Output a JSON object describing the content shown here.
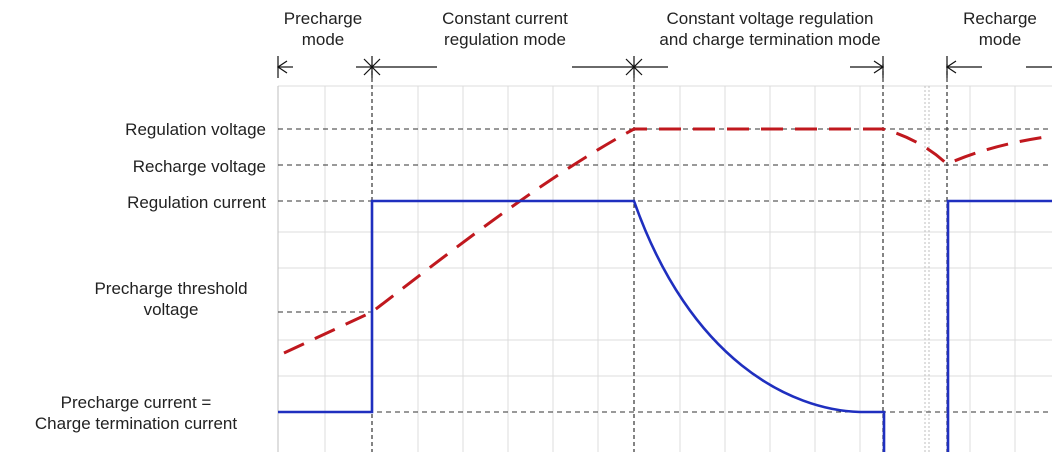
{
  "phases": [
    {
      "line1": "Precharge",
      "line2": "mode"
    },
    {
      "line1": "Constant current",
      "line2": "regulation mode"
    },
    {
      "line1": "Constant voltage regulation",
      "line2": "and charge termination mode"
    },
    {
      "line1": "Recharge",
      "line2": "mode"
    }
  ],
  "levels": {
    "regulation_voltage": "Regulation voltage",
    "recharge_voltage": "Recharge voltage",
    "regulation_current": "Regulation current",
    "precharge_threshold": {
      "line1": "Precharge threshold",
      "line2": "voltage"
    },
    "precharge_current": {
      "line1": "Precharge current =",
      "line2": "Charge termination current"
    }
  },
  "colors": {
    "voltage_curve": "#c0181e",
    "current_curve": "#1f2fbf",
    "grid": "#dcdcdc",
    "guide": "#333333"
  }
}
